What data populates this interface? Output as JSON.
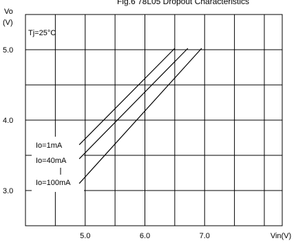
{
  "chart_data": {
    "type": "line",
    "title": "Fig.6 78L05 Dropout Characteristics",
    "ylabel_line1": "Vo",
    "ylabel_line2": "(V)",
    "xlabel": "Vin(V)",
    "annotation": "Tj=25°C",
    "xlim": [
      4.0,
      8.3
    ],
    "ylim": [
      2.5,
      5.5
    ],
    "xticks": [
      5.0,
      6.0,
      7.0
    ],
    "xtick_labels": [
      "5.0",
      "6.0",
      "7.0"
    ],
    "yticks": [
      3.0,
      4.0,
      5.0
    ],
    "ytick_labels": [
      "3.0",
      "4.0",
      "5.0"
    ],
    "grid": true,
    "series": [
      {
        "name": "Io=1mA",
        "x": [
          4.9,
          6.5
        ],
        "y": [
          3.65,
          5.02
        ]
      },
      {
        "name": "Io=40mA",
        "x": [
          4.9,
          6.72
        ],
        "y": [
          3.45,
          5.02
        ]
      },
      {
        "name": "Io=100mA",
        "x": [
          4.9,
          6.95
        ],
        "y": [
          3.1,
          5.02
        ]
      }
    ]
  }
}
